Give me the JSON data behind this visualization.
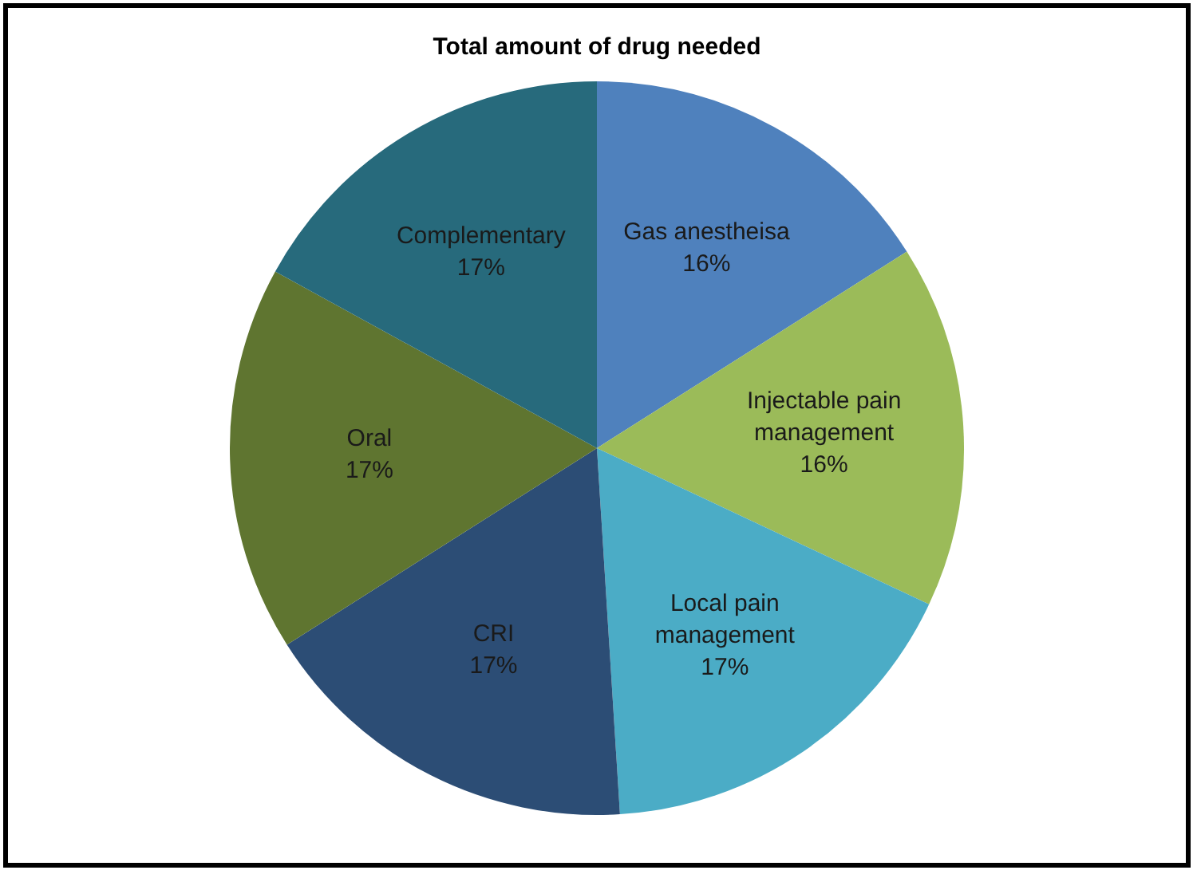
{
  "chart_data": {
    "type": "pie",
    "title": "Total amount of drug needed",
    "categories": [
      "Gas anestheisa",
      "Injectable pain management",
      "Local pain management",
      "CRI",
      "Oral",
      "Complementary"
    ],
    "values": [
      16,
      16,
      17,
      17,
      17,
      17
    ],
    "colors": [
      "#4f81bd",
      "#9bbb59",
      "#4bacc6",
      "#2c4d75",
      "#5f7530",
      "#276a7c"
    ],
    "value_labels": [
      "16%",
      "16%",
      "17%",
      "17%",
      "17%",
      "17%"
    ],
    "legend": false
  }
}
